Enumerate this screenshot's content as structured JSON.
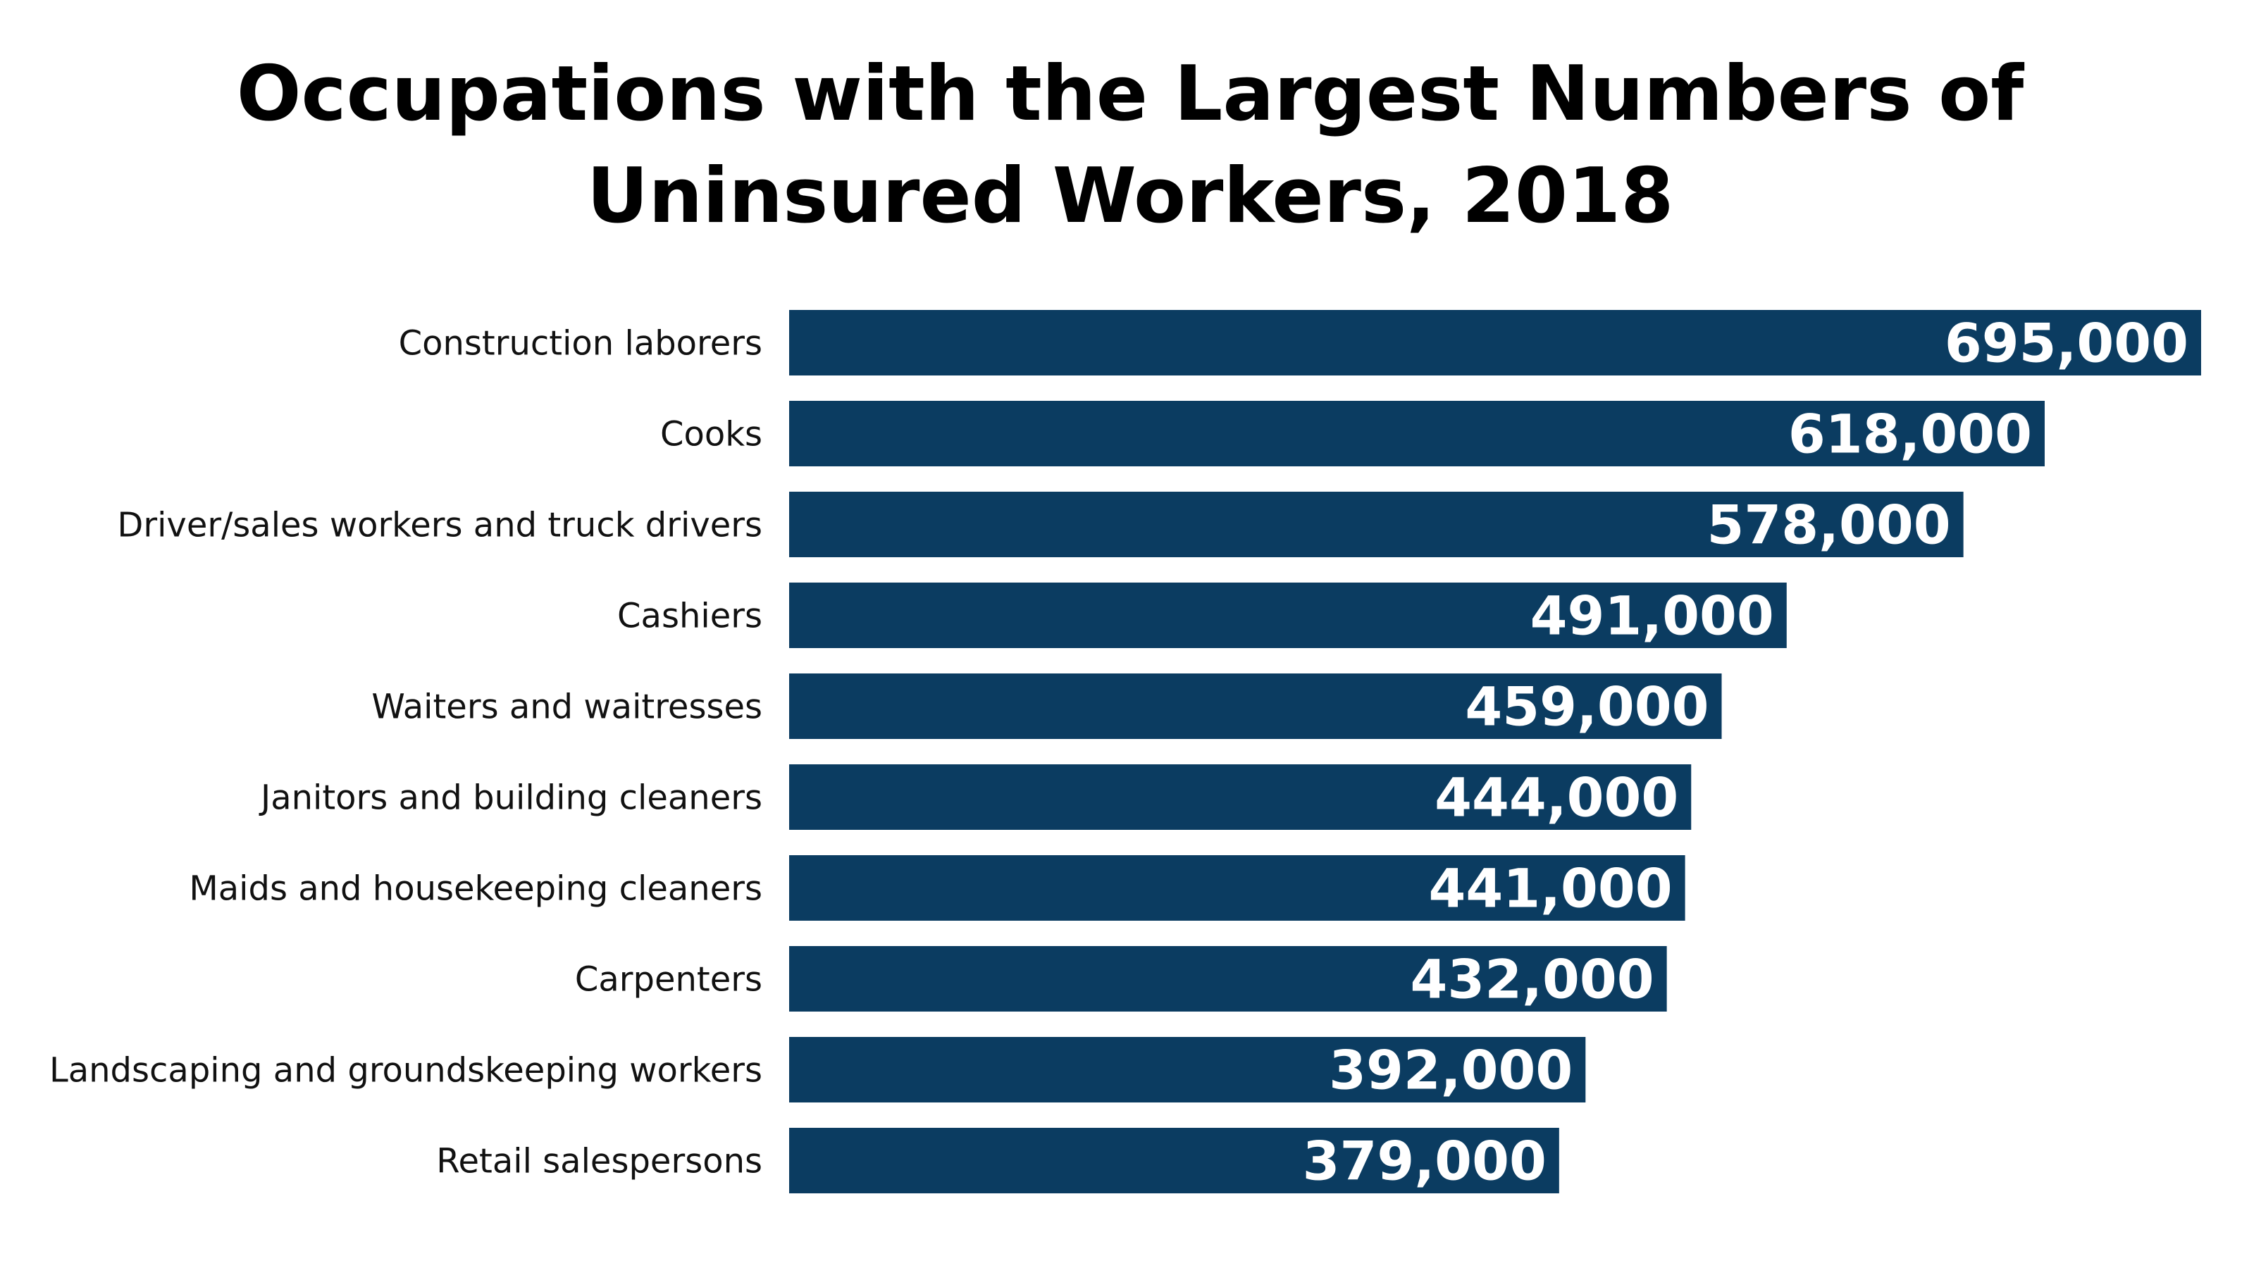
{
  "chart_data": {
    "type": "bar",
    "orientation": "horizontal",
    "title": [
      "Occupations with the Largest Numbers of",
      "Uninsured Workers, 2018"
    ],
    "categories": [
      "Construction laborers",
      "Cooks",
      "Driver/sales workers and truck drivers",
      "Cashiers",
      "Waiters and waitresses",
      "Janitors and building cleaners",
      "Maids and housekeeping cleaners",
      "Carpenters",
      "Landscaping and groundskeeping workers",
      "Retail salespersons"
    ],
    "values": [
      695000,
      618000,
      578000,
      491000,
      459000,
      444000,
      441000,
      432000,
      392000,
      379000
    ],
    "value_labels": [
      "695,000",
      "618,000",
      "578,000",
      "491,000",
      "459,000",
      "444,000",
      "441,000",
      "432,000",
      "392,000",
      "379,000"
    ],
    "xlabel": "",
    "ylabel": "",
    "xlim": [
      0,
      695000
    ],
    "grid": false,
    "legend": "none",
    "bar_color": "#0b3c61",
    "value_label_color": "#ffffff"
  }
}
